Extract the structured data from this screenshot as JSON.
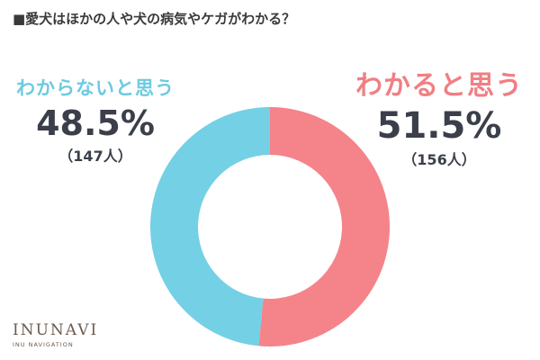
{
  "title": "■愛犬はほかの人や犬の病気やケガがわかる？",
  "chart_data": {
    "type": "pie",
    "donut": true,
    "slices": [
      {
        "label": "わかると思う",
        "percent_text": "51.5%",
        "count_text": "（156人）",
        "value": 51.5,
        "count": 156,
        "color": "#f4848a"
      },
      {
        "label": "わからないと思う",
        "percent_text": "48.5%",
        "count_text": "（147人）",
        "value": 48.5,
        "count": 147,
        "color": "#74d0e4"
      }
    ]
  },
  "logo": {
    "main": "INUNAVI",
    "sub": "INU NAVIGATION"
  }
}
